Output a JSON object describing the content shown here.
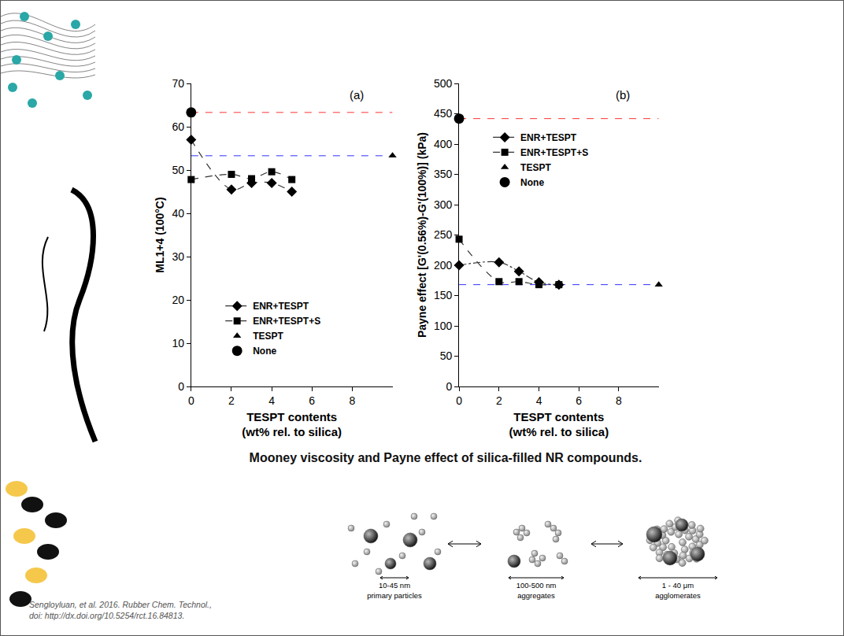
{
  "chart_data": [
    {
      "type": "scatter",
      "annotations": [
        "(a)"
      ],
      "x_label": "TESPT contents (wt% rel. to silica)",
      "y_label": "ML1+4 (100°C)",
      "xlim": [
        0,
        10
      ],
      "xticks": [
        0,
        2,
        4,
        6,
        8
      ],
      "ylim": [
        0,
        70
      ],
      "yticks": [
        0,
        10,
        20,
        30,
        40,
        50,
        60,
        70
      ],
      "grid": false,
      "legend": "lower left",
      "series": [
        {
          "name": "ENR+TESPT",
          "color": "#000000",
          "marker": "diamond",
          "line_style": "dashed",
          "x": [
            0,
            2,
            3,
            4,
            5
          ],
          "values": [
            57,
            45.5,
            47,
            47,
            45
          ]
        },
        {
          "name": "ENR+TESPT+S",
          "color": "#000000",
          "marker": "square",
          "line_style": "dashed",
          "x": [
            0,
            2,
            3,
            4,
            5
          ],
          "values": [
            47.8,
            49,
            48,
            49.6,
            47.8
          ]
        },
        {
          "name": "TESPT",
          "color": "#000000",
          "marker": "triangle",
          "line_style": "none",
          "x": [
            10
          ],
          "values": [
            53.3
          ]
        },
        {
          "name": "None",
          "color": "#000000",
          "marker": "circle",
          "line_style": "none",
          "x": [
            0
          ],
          "values": [
            63.3
          ]
        }
      ]
    },
    {
      "type": "scatter",
      "annotations": [
        "(b)"
      ],
      "x_label": "TESPT contents (wt% rel. to silica)",
      "y_label": "Payne effect [G'(0.56%)-G'(100%)] (kPa)",
      "xlim": [
        0,
        10
      ],
      "xticks": [
        0,
        2,
        4,
        6,
        8
      ],
      "ylim": [
        0,
        500
      ],
      "yticks": [
        0,
        50,
        100,
        150,
        200,
        250,
        300,
        350,
        400,
        450,
        500
      ],
      "grid": false,
      "legend": "upper left",
      "series": [
        {
          "name": "ENR+TESPT",
          "color": "#000000",
          "marker": "diamond",
          "line_style": "dashdot",
          "x": [
            0,
            2,
            3,
            4,
            5
          ],
          "values": [
            200,
            205,
            190,
            172,
            168
          ]
        },
        {
          "name": "ENR+TESPT+S",
          "color": "#000000",
          "marker": "square",
          "line_style": "dashed",
          "x": [
            0,
            2,
            3,
            4,
            5
          ],
          "values": [
            243,
            173,
            173,
            168,
            168
          ]
        },
        {
          "name": "TESPT",
          "color": "#000000",
          "marker": "triangle",
          "line_style": "none",
          "x": [
            10
          ],
          "values": [
            168
          ]
        },
        {
          "name": "None",
          "color": "#000000",
          "marker": "circle",
          "line_style": "none",
          "x": [
            0
          ],
          "values": [
            442
          ]
        }
      ]
    }
  ],
  "caption": "Mooney viscosity and Payne effect of silica-filled NR compounds.",
  "diagram": {
    "items": [
      {
        "size": "10-45 nm",
        "label": "primary particles"
      },
      {
        "size": "100-500 nm",
        "label": "aggregates"
      },
      {
        "size": "1 - 40 μm",
        "label": "agglomerates"
      }
    ]
  },
  "citation": [
    "Sengloyluan, et al. 2016. Rubber Chem. Technol.,",
    "doi: http://dx.doi.org/10.5254/rct.16.84813."
  ]
}
